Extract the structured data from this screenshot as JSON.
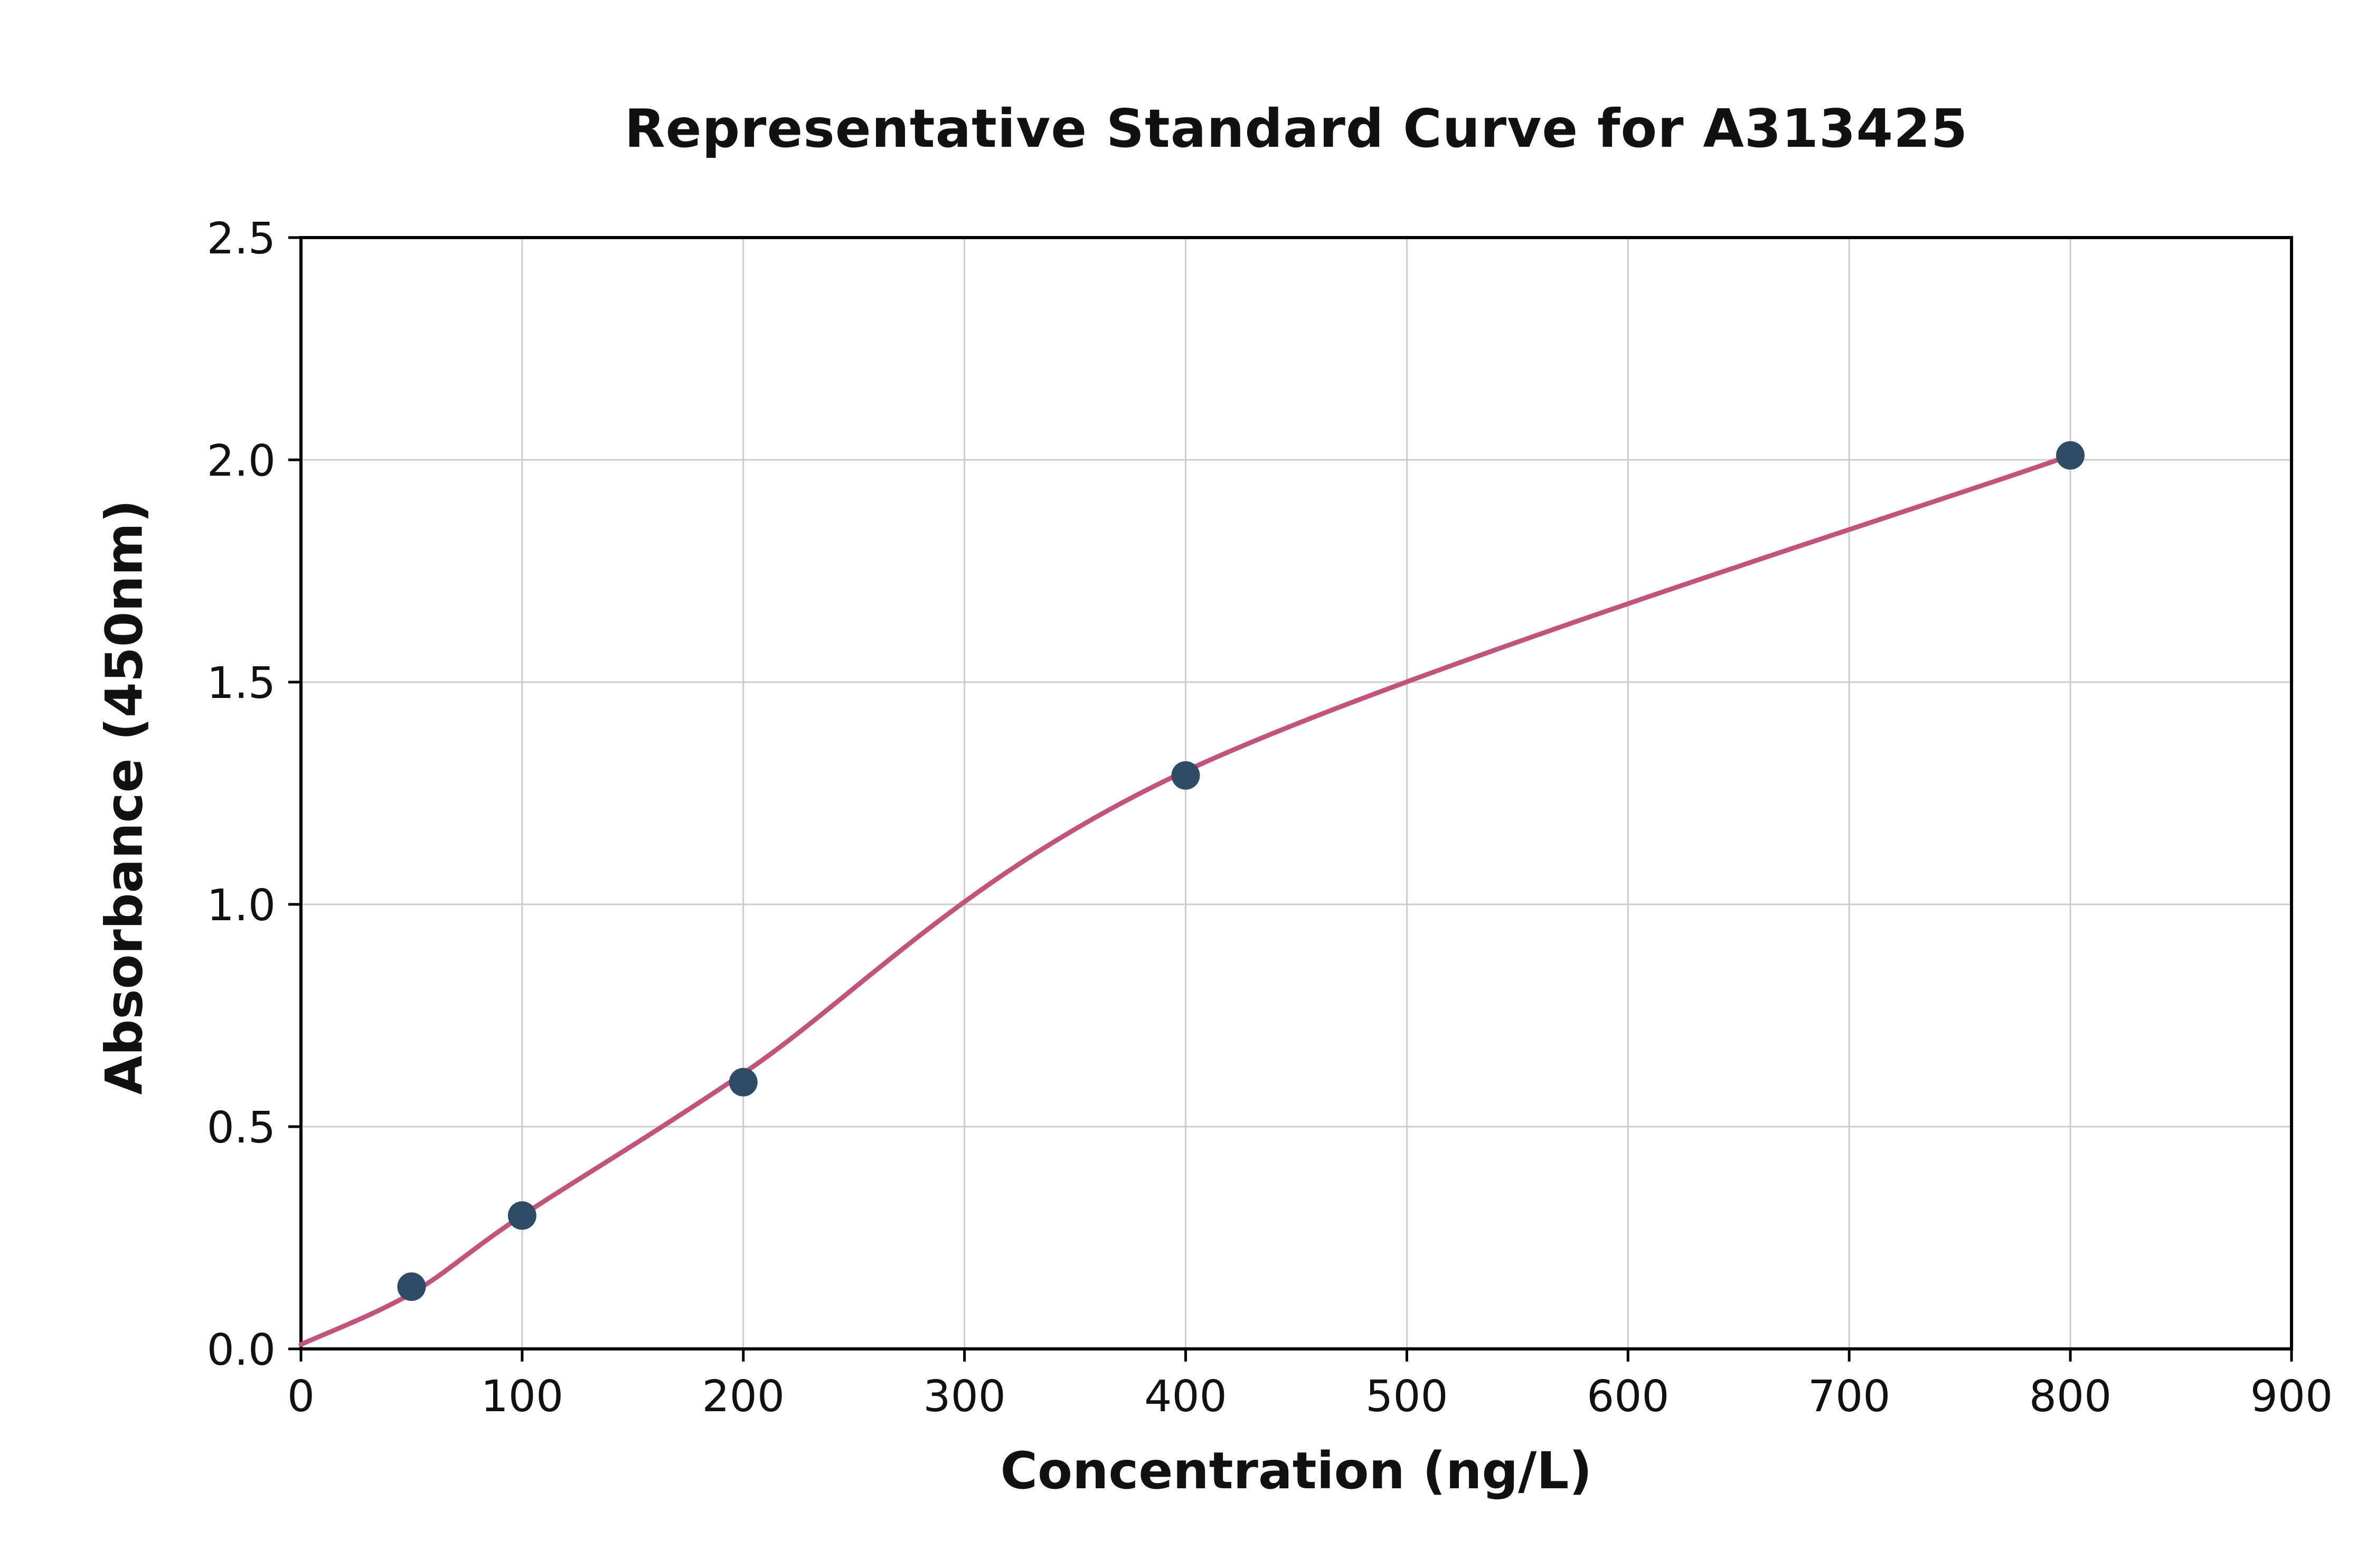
{
  "chart_data": {
    "type": "line",
    "title": "Representative Standard Curve for A313425",
    "xlabel": "Concentration (ng/L)",
    "ylabel": "Absorbance (450nm)",
    "xlim": [
      0,
      900
    ],
    "ylim": [
      0,
      2.5
    ],
    "x_ticks": [
      0,
      100,
      200,
      300,
      400,
      500,
      600,
      700,
      800,
      900
    ],
    "x_tick_labels": [
      "0",
      "100",
      "200",
      "300",
      "400",
      "500",
      "600",
      "700",
      "800",
      "900"
    ],
    "y_ticks": [
      0.0,
      0.5,
      1.0,
      1.5,
      2.0,
      2.5
    ],
    "y_tick_labels": [
      "0.0",
      "0.5",
      "1.0",
      "1.5",
      "2.0",
      "2.5"
    ],
    "grid": true,
    "legend": "none",
    "series": [
      {
        "name": "standard-points",
        "type": "scatter",
        "x": [
          50,
          100,
          200,
          400,
          800
        ],
        "y": [
          0.14,
          0.3,
          0.6,
          1.29,
          2.01
        ]
      },
      {
        "name": "fitted-curve",
        "type": "line",
        "x": [
          0,
          50,
          100,
          200,
          400,
          800
        ],
        "y": [
          0.01,
          0.125,
          0.3,
          0.62,
          1.3,
          2.01
        ]
      }
    ],
    "colors": {
      "curve": "#c2537a",
      "points": "#2f4b66",
      "grid": "#cccccc",
      "axis": "#000000",
      "background": "#ffffff"
    }
  }
}
